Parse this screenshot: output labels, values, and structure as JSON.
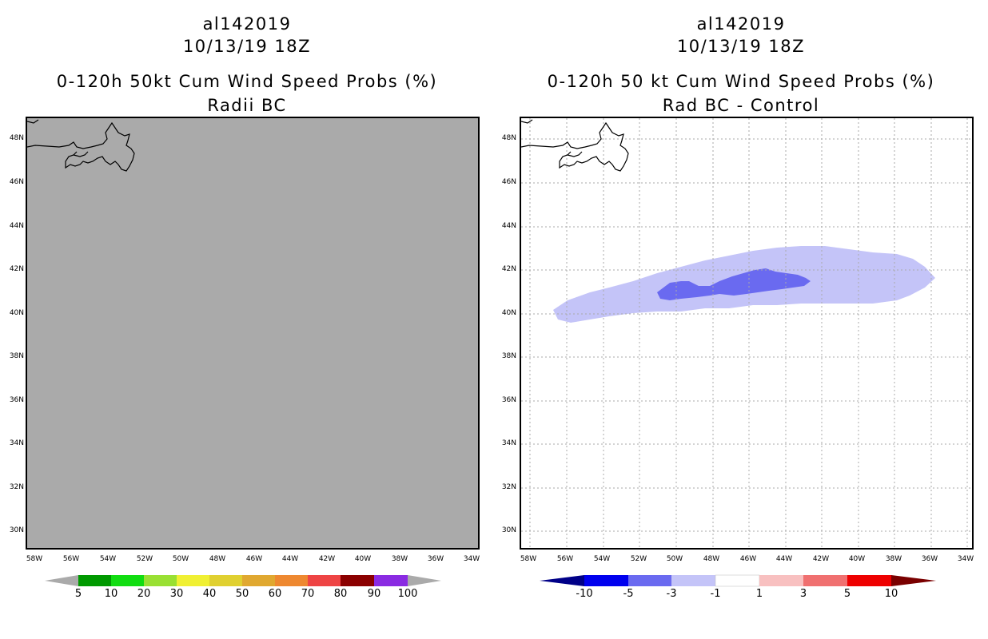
{
  "left_panel": {
    "storm_id": "al142019",
    "datetime": "10/13/19 18Z",
    "title": "0-120h 50kt Cum Wind Speed Probs (%)",
    "subtitle": "Radii BC",
    "colorbar": {
      "labels": [
        "5",
        "10",
        "20",
        "30",
        "40",
        "50",
        "60",
        "70",
        "80",
        "90",
        "100"
      ],
      "colors": [
        "#aaaaaa",
        "#009900",
        "#11dd11",
        "#99e033",
        "#f0f033",
        "#e0d030",
        "#e0a830",
        "#ee8830",
        "#ee4444",
        "#8b0000",
        "#8a2be2",
        "#aaaaaa"
      ]
    }
  },
  "right_panel": {
    "storm_id": "al142019",
    "datetime": "10/13/19 18Z",
    "title": "0-120h 50 kt Cum Wind Speed Probs (%)",
    "subtitle": "Rad BC - Control",
    "colorbar": {
      "labels": [
        "-10",
        "-5",
        "-3",
        "-1",
        "1",
        "3",
        "5",
        "10"
      ],
      "colors": [
        "#000088",
        "#0000ee",
        "#6a6af0",
        "#c4c4f8",
        "#ffffff",
        "#f8c0c0",
        "#f07070",
        "#ee0000",
        "#7a0000"
      ]
    }
  },
  "axes": {
    "lat_labels": [
      "48N",
      "46N",
      "44N",
      "42N",
      "40N",
      "38N",
      "36N",
      "34N",
      "32N",
      "30N"
    ],
    "lon_labels": [
      "58W",
      "56W",
      "54W",
      "52W",
      "50W",
      "48W",
      "46W",
      "44W",
      "42W",
      "40W",
      "38W",
      "36W",
      "34W"
    ]
  },
  "map_features": [
    "newfoundland-coastline"
  ],
  "shading": {
    "light_region_label": "-3 to -1",
    "dark_region_label": "-5 to -3"
  }
}
